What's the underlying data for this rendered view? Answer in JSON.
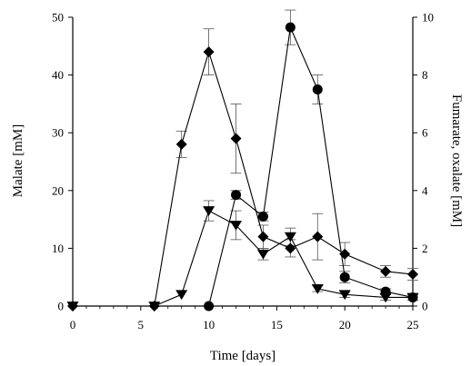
{
  "chart_data": {
    "type": "line",
    "xlabel": "Time [days]",
    "ylabel_left": "Malate [mM]",
    "ylabel_right": "Fumarate, oxalate [mM]",
    "xlim": [
      0,
      25
    ],
    "ylim_left": [
      0,
      50
    ],
    "ylim_right": [
      0,
      10
    ],
    "x_ticks": [
      0,
      5,
      10,
      15,
      20,
      25
    ],
    "y_left_ticks": [
      0,
      10,
      20,
      30,
      40,
      50
    ],
    "y_right_ticks": [
      0,
      2,
      4,
      6,
      8,
      10
    ],
    "grid": false,
    "series": [
      {
        "axis": "left",
        "marker": "diamond",
        "x": [
          0,
          6,
          8,
          10,
          12,
          14,
          16,
          18,
          20,
          23,
          25
        ],
        "y": [
          0,
          0,
          28,
          44,
          29,
          12,
          10,
          12,
          9,
          6,
          5.5
        ],
        "err": [
          0,
          0,
          2.3,
          4,
          6,
          2,
          1.5,
          4,
          2,
          1,
          1
        ]
      },
      {
        "axis": "right",
        "marker": "circle",
        "x": [
          10,
          12,
          14,
          16,
          18,
          20,
          23,
          25
        ],
        "y": [
          0,
          3.85,
          3.1,
          9.65,
          7.5,
          1,
          0.5,
          0.3
        ],
        "err": [
          0,
          0.15,
          0.15,
          0.6,
          0.5,
          0.2,
          0.1,
          0.1
        ]
      },
      {
        "axis": "right",
        "marker": "triangle-down",
        "x": [
          0,
          6,
          8,
          10,
          12,
          14,
          16,
          18,
          20,
          23,
          25
        ],
        "y": [
          0,
          0,
          0.4,
          3.3,
          2.8,
          1.8,
          2.4,
          0.6,
          0.4,
          0.3,
          0.3
        ],
        "err": [
          0,
          0,
          0,
          0.35,
          0.5,
          0.2,
          0.3,
          0.1,
          0.1,
          0.1,
          0.1
        ]
      }
    ]
  }
}
